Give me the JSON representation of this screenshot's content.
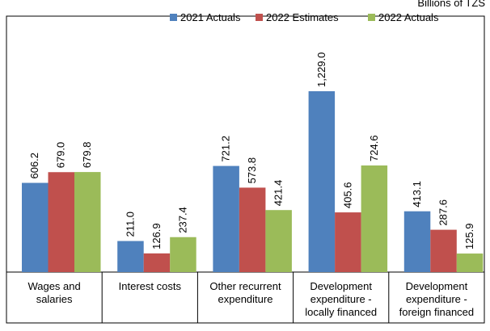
{
  "chart_data": {
    "type": "bar",
    "title": "Billions of TZS",
    "categories": [
      "Wages and salaries",
      "Interest costs",
      "Other recurrent expenditure",
      "Development expenditure - locally financed",
      "Development expenditure - foreign financed"
    ],
    "series": [
      {
        "name": "2021 Actuals",
        "color": "#4f81bd",
        "values": [
          606.2,
          211.0,
          721.2,
          1229.0,
          413.1
        ],
        "value_labels": [
          "606.2",
          "211.0",
          "721.2",
          "1,229.0",
          "413.1"
        ]
      },
      {
        "name": "2022 Estimates",
        "color": "#c0504d",
        "values": [
          679.0,
          126.9,
          573.8,
          405.6,
          287.6
        ],
        "value_labels": [
          "679.0",
          "126.9",
          "573.8",
          "405.6",
          "287.6"
        ]
      },
      {
        "name": "2022 Actuals",
        "color": "#9bbb59",
        "values": [
          679.8,
          237.4,
          421.4,
          724.6,
          125.9
        ],
        "value_labels": [
          "679.8",
          "237.4",
          "421.4",
          "724.6",
          "125.9"
        ]
      }
    ]
  }
}
